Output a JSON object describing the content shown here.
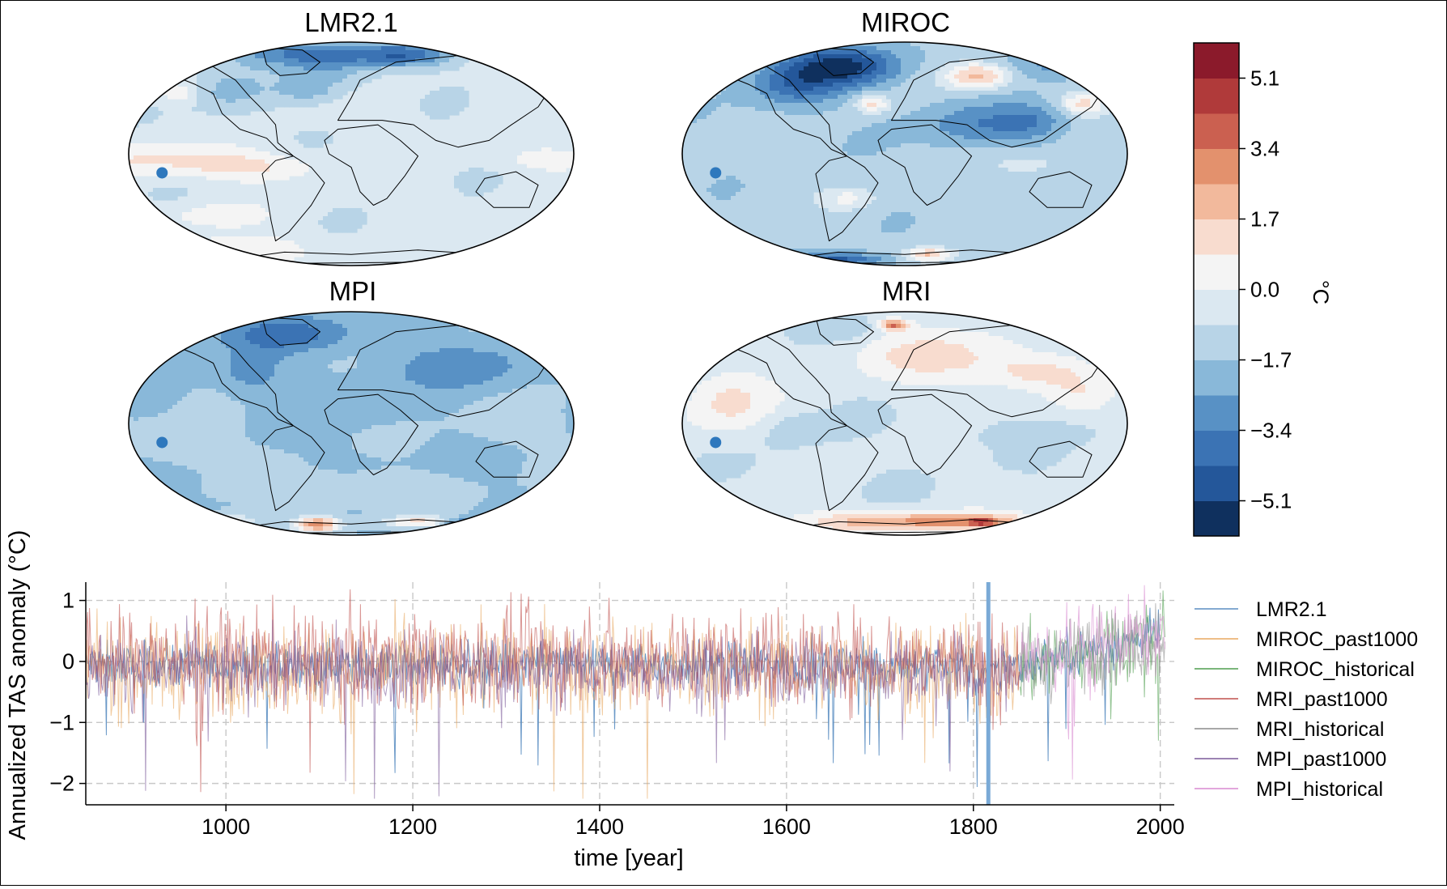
{
  "maps": [
    {
      "title": "LMR2.1",
      "pattern": "lmr"
    },
    {
      "title": "MIROC",
      "pattern": "miroc"
    },
    {
      "title": "MPI",
      "pattern": "mpi"
    },
    {
      "title": "MRI",
      "pattern": "mri"
    }
  ],
  "colorbar": {
    "unit": "°C",
    "levels": [
      -5.95,
      -5.1,
      -4.25,
      -3.4,
      -2.55,
      -1.7,
      -0.85,
      0.0,
      0.85,
      1.7,
      2.55,
      3.4,
      4.25,
      5.1,
      5.95
    ],
    "tick_values": [
      -5.1,
      -3.4,
      -1.7,
      0.0,
      1.7,
      3.4,
      5.1
    ],
    "tick_labels": [
      "−5.1",
      "−3.4",
      "−1.7",
      "0.0",
      "1.7",
      "3.4",
      "5.1"
    ],
    "colors": [
      "#0f305e",
      "#24579a",
      "#3b73b4",
      "#5891c5",
      "#89b8d9",
      "#b8d4e7",
      "#dbe8f1",
      "#f4f4f4",
      "#f8dccf",
      "#f2b99c",
      "#e3916d",
      "#cb6050",
      "#b03a3a",
      "#8b1a2b",
      "#69101f"
    ]
  },
  "chart_data": {
    "type": "line",
    "ylabel": "Annualized TAS anomaly (°C)",
    "xlabel": "time [year]",
    "xlim": [
      850,
      2015
    ],
    "ylim": [
      -2.35,
      1.3
    ],
    "xticks": [
      1000,
      1200,
      1400,
      1600,
      1800,
      2000
    ],
    "yticks": [
      1,
      0,
      -1,
      -2
    ],
    "ytick_labels": [
      "1",
      "0",
      "−1",
      "−2"
    ],
    "grid": true,
    "highlight_year": 1816,
    "legend_position": "right",
    "series": [
      {
        "name": "LMR2.1",
        "color": "#5b8ec2",
        "start": 850,
        "end": 2000,
        "amplitude": 0.18,
        "mean": -0.05
      },
      {
        "name": "MIROC_past1000",
        "color": "#e8a860",
        "start": 850,
        "end": 1849,
        "amplitude": 0.38,
        "mean": -0.12
      },
      {
        "name": "MIROC_historical",
        "color": "#4e9e4e",
        "start": 1850,
        "end": 2005,
        "amplitude": 0.35,
        "mean": -0.1
      },
      {
        "name": "MRI_past1000",
        "color": "#c0504d",
        "start": 850,
        "end": 1849,
        "amplitude": 0.4,
        "mean": 0.05
      },
      {
        "name": "MRI_historical",
        "color": "#8c8c8c",
        "start": 1850,
        "end": 2005,
        "amplitude": 0.32,
        "mean": -0.1
      },
      {
        "name": "MPI_past1000",
        "color": "#7b5a9a",
        "start": 850,
        "end": 1849,
        "amplitude": 0.3,
        "mean": -0.15
      },
      {
        "name": "MPI_historical",
        "color": "#d98ad0",
        "start": 1850,
        "end": 2005,
        "amplitude": 0.33,
        "mean": 0.0
      }
    ]
  }
}
